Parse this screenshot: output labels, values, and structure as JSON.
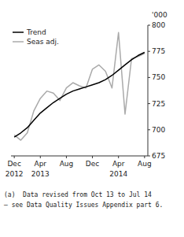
{
  "chart_data": {
    "type": "line",
    "ylabel": "'000",
    "categories": [
      "Dec",
      null,
      null,
      null,
      "Apr",
      null,
      null,
      null,
      "Aug",
      null,
      null,
      null,
      "Dec",
      null,
      null,
      null,
      "Apr",
      null,
      null,
      null,
      "Aug"
    ],
    "series": [
      {
        "name": "Trend",
        "color": "#000000",
        "values": [
          693,
          697,
          702,
          709,
          716,
          721,
          726,
          730,
          734,
          737,
          739,
          741,
          743,
          745,
          748,
          752,
          757,
          762,
          767,
          771,
          774
        ]
      },
      {
        "name": "Seas adj.",
        "color": "#aaaaaa",
        "values": [
          695,
          690,
          697,
          718,
          730,
          737,
          735,
          728,
          740,
          745,
          742,
          740,
          758,
          762,
          756,
          740,
          793,
          715,
          768,
          770,
          773
        ]
      }
    ],
    "ylim": [
      675,
      800
    ],
    "yticks": [
      675,
      700,
      725,
      750,
      775,
      800
    ],
    "grid": false,
    "legend": "upper left",
    "annotations": [
      {
        "text": "2012",
        "x": 0
      },
      {
        "text": "2013",
        "x": 4
      },
      {
        "text": "2014",
        "x": 16
      },
      {
        "text": "(a)  Data revised from Oct 13 to Jul 14"
      },
      {
        "text": "— see Data Quality Issues Appendix part 6."
      }
    ]
  }
}
